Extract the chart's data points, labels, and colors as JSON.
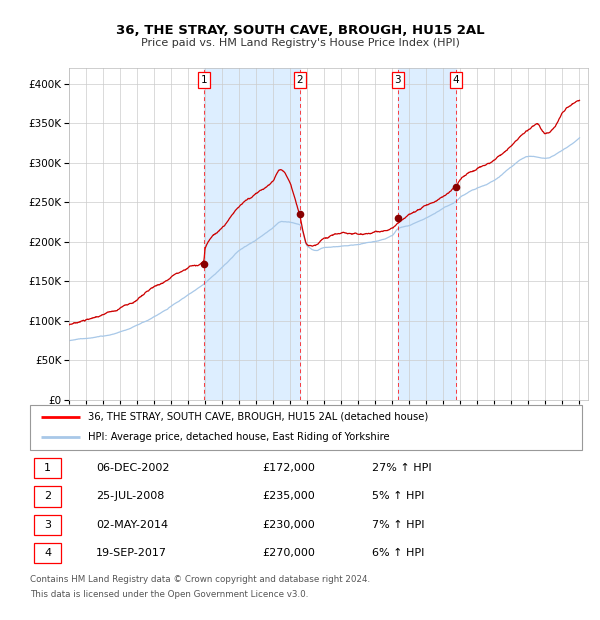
{
  "title": "36, THE STRAY, SOUTH CAVE, BROUGH, HU15 2AL",
  "subtitle": "Price paid vs. HM Land Registry's House Price Index (HPI)",
  "background_color": "#ffffff",
  "grid_color": "#cccccc",
  "hpi_color": "#a8c8e8",
  "price_color": "#cc0000",
  "shade_color": "#ddeeff",
  "ylim": [
    0,
    420000
  ],
  "yticks": [
    0,
    50000,
    100000,
    150000,
    200000,
    250000,
    300000,
    350000,
    400000
  ],
  "transactions": [
    {
      "num": 1,
      "date_str": "06-DEC-2002",
      "year": 2002.92,
      "price": 172000,
      "pct": "27%",
      "dir": "↑"
    },
    {
      "num": 2,
      "date_str": "25-JUL-2008",
      "year": 2008.56,
      "price": 235000,
      "pct": "5%",
      "dir": "↑"
    },
    {
      "num": 3,
      "date_str": "02-MAY-2014",
      "year": 2014.33,
      "price": 230000,
      "pct": "7%",
      "dir": "↑"
    },
    {
      "num": 4,
      "date_str": "19-SEP-2017",
      "year": 2017.72,
      "price": 270000,
      "pct": "6%",
      "dir": "↑"
    }
  ],
  "legend_property_label": "36, THE STRAY, SOUTH CAVE, BROUGH, HU15 2AL (detached house)",
  "legend_hpi_label": "HPI: Average price, detached house, East Riding of Yorkshire",
  "footer_line1": "Contains HM Land Registry data © Crown copyright and database right 2024.",
  "footer_line2": "This data is licensed under the Open Government Licence v3.0.",
  "xmin": 1995,
  "xmax": 2025.5
}
